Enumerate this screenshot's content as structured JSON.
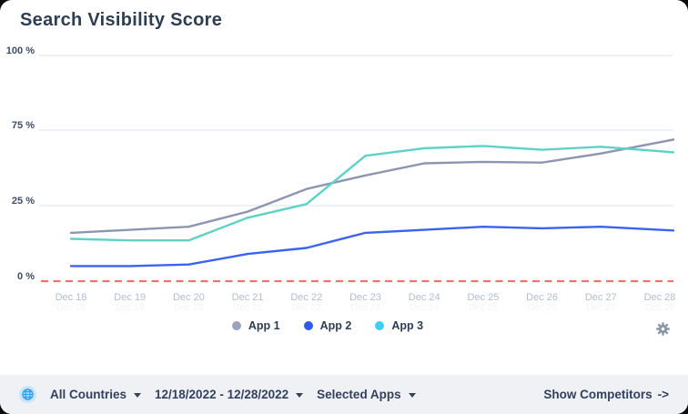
{
  "title": "Search Visibility Score",
  "chart_data": {
    "type": "line",
    "title": "Search Visibility Score",
    "x_labels": [
      "Dec 18",
      "Dec 19",
      "Dec 20",
      "Dec 21",
      "Dec 22",
      "Dec 23",
      "Dec 24",
      "Dec 25",
      "Dec 26",
      "Dec 27",
      "Dec 28"
    ],
    "y_ticks": [
      {
        "label": "0 %",
        "value": 0
      },
      {
        "label": "25 %",
        "value": 25
      },
      {
        "label": "75 %",
        "value": 75
      },
      {
        "label": "100 %",
        "value": 100
      }
    ],
    "ylim": [
      0,
      100
    ],
    "grid": "horizontal",
    "legend_position": "bottom-center",
    "grid_color": "#E4EAF2",
    "tick_label_color": "#3E4C66",
    "axis_label_color": "#B2BCCF",
    "zero_line": {
      "style": "dashed",
      "color": "#F0716F"
    },
    "series": [
      {
        "name": "App 1",
        "line_color": "#8E95B2",
        "legend_dot_color": "#9AA4BC",
        "values": [
          16,
          17,
          18,
          23,
          36,
          45,
          53,
          54,
          53.5,
          59.5,
          67
        ]
      },
      {
        "name": "App 2",
        "line_color": "#3C63EE",
        "legend_dot_color": "#2F5CE8",
        "values": [
          5,
          5,
          5.5,
          9,
          11,
          16,
          17,
          18,
          17.5,
          18,
          17
        ]
      },
      {
        "name": "App 3",
        "line_color": "#5ED2C6",
        "legend_dot_color": "#3FCDF4",
        "values": [
          14,
          13.5,
          13.5,
          21,
          26,
          58,
          63,
          64.5,
          62,
          64,
          61
        ]
      }
    ]
  },
  "footer": {
    "country_filter": "All Countries",
    "date_range": "12/18/2022 - 12/28/2022",
    "apps_filter": "Selected Apps",
    "competitors_label": "Show Competitors",
    "competitors_arrow": "->"
  }
}
